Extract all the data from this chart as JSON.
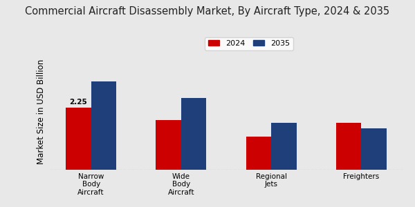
{
  "title": "Commercial Aircraft Disassembly Market, By Aircraft Type, 2024 & 2035",
  "ylabel": "Market Size in USD Billion",
  "categories": [
    "Narrow\nBody\nAircraft",
    "Wide\nBody\nAircraft",
    "Regional\nJets",
    "Freighters"
  ],
  "values_2024": [
    2.25,
    1.8,
    1.2,
    1.7
  ],
  "values_2035": [
    3.2,
    2.6,
    1.7,
    1.5
  ],
  "color_2024": "#cc0000",
  "color_2035": "#1f3f7a",
  "bar_width": 0.28,
  "label_2024": "2024",
  "label_2035": "2035",
  "annotation_text": "2.25",
  "background_color": "#e8e8e8",
  "title_fontsize": 10.5,
  "ylabel_fontsize": 8.5,
  "ylim": [
    0,
    4.2
  ]
}
